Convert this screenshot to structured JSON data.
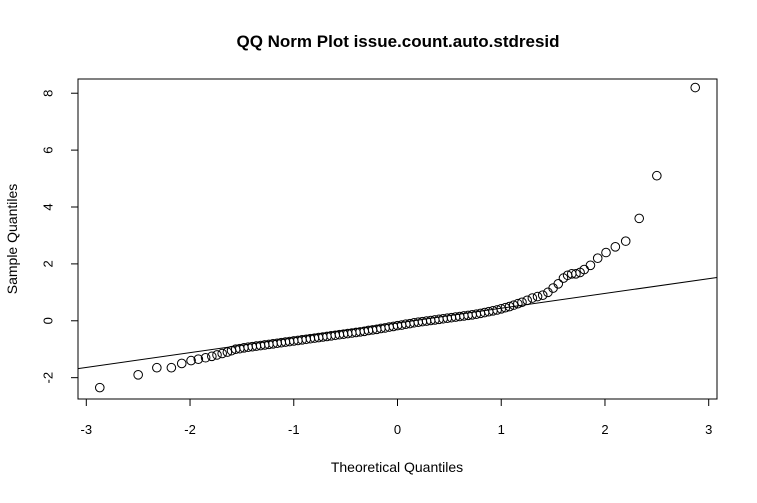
{
  "chart_data": {
    "type": "scatter",
    "title": "QQ Norm Plot issue.count.auto.stdresid",
    "xlabel": "Theoretical Quantiles",
    "ylabel": "Sample Quantiles",
    "xlim": [
      -3.08,
      3.08
    ],
    "ylim": [
      -2.75,
      8.5
    ],
    "xticks": [
      -3,
      -2,
      -1,
      0,
      1,
      2,
      3
    ],
    "yticks": [
      -2,
      0,
      2,
      4,
      6,
      8
    ],
    "grid": false,
    "legend": "none",
    "reference_line": {
      "intercept": -0.08,
      "slope": 0.52
    },
    "points": [
      [
        -2.87,
        -2.35
      ],
      [
        -2.5,
        -1.9
      ],
      [
        -2.32,
        -1.65
      ],
      [
        -2.18,
        -1.65
      ],
      [
        -2.08,
        -1.5
      ],
      [
        -1.99,
        -1.4
      ],
      [
        -1.92,
        -1.35
      ],
      [
        -1.85,
        -1.3
      ],
      [
        -1.79,
        -1.25
      ],
      [
        -1.74,
        -1.2
      ],
      [
        -1.69,
        -1.15
      ],
      [
        -1.64,
        -1.1
      ],
      [
        -1.6,
        -1.05
      ],
      [
        -1.56,
        -1.0
      ],
      [
        -1.52,
        -0.98
      ],
      [
        -1.48,
        -0.95
      ],
      [
        -1.44,
        -0.93
      ],
      [
        -1.4,
        -0.91
      ],
      [
        -1.36,
        -0.89
      ],
      [
        -1.32,
        -0.87
      ],
      [
        -1.28,
        -0.85
      ],
      [
        -1.24,
        -0.83
      ],
      [
        -1.2,
        -0.81
      ],
      [
        -1.16,
        -0.79
      ],
      [
        -1.12,
        -0.77
      ],
      [
        -1.08,
        -0.75
      ],
      [
        -1.04,
        -0.73
      ],
      [
        -1.0,
        -0.71
      ],
      [
        -0.96,
        -0.69
      ],
      [
        -0.92,
        -0.67
      ],
      [
        -0.88,
        -0.65
      ],
      [
        -0.84,
        -0.63
      ],
      [
        -0.8,
        -0.61
      ],
      [
        -0.76,
        -0.59
      ],
      [
        -0.72,
        -0.57
      ],
      [
        -0.68,
        -0.55
      ],
      [
        -0.64,
        -0.53
      ],
      [
        -0.6,
        -0.51
      ],
      [
        -0.56,
        -0.49
      ],
      [
        -0.52,
        -0.47
      ],
      [
        -0.48,
        -0.45
      ],
      [
        -0.44,
        -0.43
      ],
      [
        -0.4,
        -0.41
      ],
      [
        -0.36,
        -0.39
      ],
      [
        -0.32,
        -0.37
      ],
      [
        -0.28,
        -0.34
      ],
      [
        -0.24,
        -0.32
      ],
      [
        -0.2,
        -0.3
      ],
      [
        -0.16,
        -0.27
      ],
      [
        -0.12,
        -0.25
      ],
      [
        -0.08,
        -0.22
      ],
      [
        -0.04,
        -0.2
      ],
      [
        0.0,
        -0.17
      ],
      [
        0.04,
        -0.15
      ],
      [
        0.08,
        -0.12
      ],
      [
        0.12,
        -0.1
      ],
      [
        0.16,
        -0.07
      ],
      [
        0.2,
        -0.05
      ],
      [
        0.24,
        -0.03
      ],
      [
        0.28,
        -0.01
      ],
      [
        0.32,
        0.01
      ],
      [
        0.36,
        0.03
      ],
      [
        0.4,
        0.05
      ],
      [
        0.44,
        0.07
      ],
      [
        0.48,
        0.09
      ],
      [
        0.52,
        0.11
      ],
      [
        0.56,
        0.13
      ],
      [
        0.6,
        0.15
      ],
      [
        0.64,
        0.17
      ],
      [
        0.68,
        0.19
      ],
      [
        0.72,
        0.21
      ],
      [
        0.76,
        0.23
      ],
      [
        0.8,
        0.26
      ],
      [
        0.84,
        0.29
      ],
      [
        0.88,
        0.32
      ],
      [
        0.92,
        0.35
      ],
      [
        0.96,
        0.38
      ],
      [
        1.0,
        0.42
      ],
      [
        1.04,
        0.46
      ],
      [
        1.08,
        0.5
      ],
      [
        1.12,
        0.55
      ],
      [
        1.16,
        0.6
      ],
      [
        1.2,
        0.65
      ],
      [
        1.25,
        0.72
      ],
      [
        1.3,
        0.8
      ],
      [
        1.35,
        0.85
      ],
      [
        1.4,
        0.9
      ],
      [
        1.45,
        1.0
      ],
      [
        1.5,
        1.15
      ],
      [
        1.55,
        1.3
      ],
      [
        1.6,
        1.5
      ],
      [
        1.64,
        1.6
      ],
      [
        1.68,
        1.65
      ],
      [
        1.72,
        1.65
      ],
      [
        1.76,
        1.7
      ],
      [
        1.8,
        1.8
      ],
      [
        1.86,
        1.95
      ],
      [
        1.93,
        2.2
      ],
      [
        2.01,
        2.4
      ],
      [
        2.1,
        2.6
      ],
      [
        2.2,
        2.8
      ],
      [
        2.33,
        3.6
      ],
      [
        2.5,
        5.1
      ],
      [
        2.87,
        8.2
      ]
    ]
  }
}
